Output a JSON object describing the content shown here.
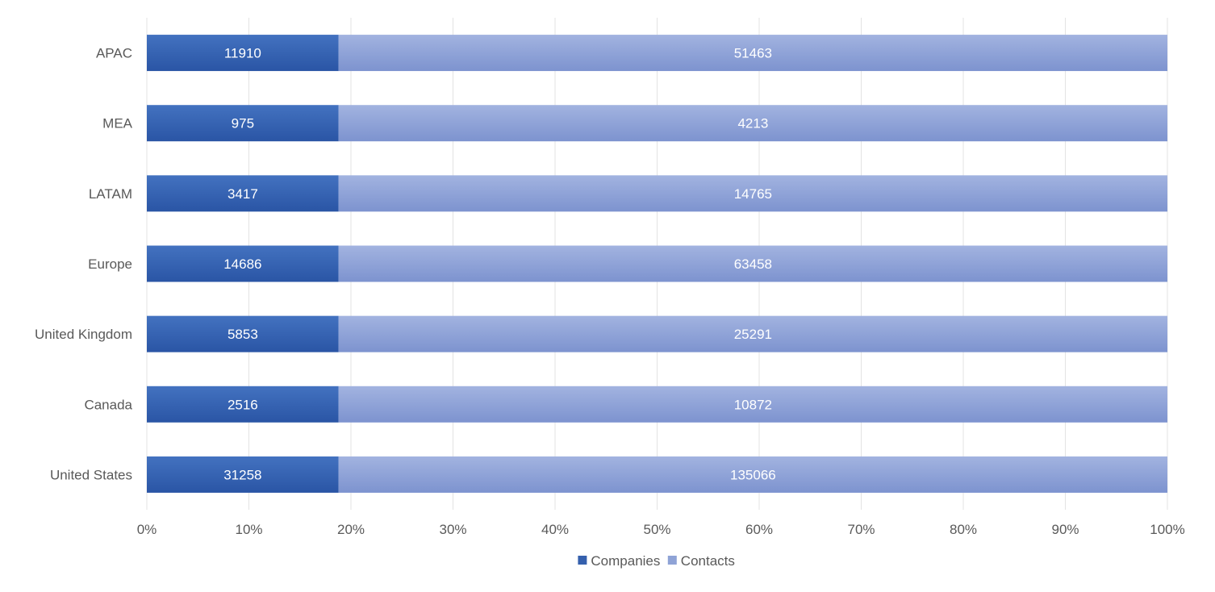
{
  "chart_data": {
    "type": "bar",
    "orientation": "horizontal",
    "stacking": "percent",
    "categories": [
      "United States",
      "Canada",
      "United Kingdom",
      "Europe",
      "LATAM",
      "MEA",
      "APAC"
    ],
    "series": [
      {
        "name": "Companies",
        "values": [
          31258,
          2516,
          5853,
          14686,
          3417,
          975,
          11910
        ],
        "color": "#3560ad"
      },
      {
        "name": "Contacts",
        "values": [
          135066,
          10872,
          25291,
          63458,
          14765,
          4213,
          51463
        ],
        "color": "#8fa3d6"
      }
    ],
    "x_ticks": [
      "0%",
      "10%",
      "20%",
      "30%",
      "40%",
      "50%",
      "60%",
      "70%",
      "80%",
      "90%",
      "100%"
    ],
    "xlim": [
      0,
      100
    ],
    "title": "",
    "xlabel": "",
    "ylabel": "",
    "grid": true,
    "legend_position": "bottom",
    "data_labels": true
  }
}
